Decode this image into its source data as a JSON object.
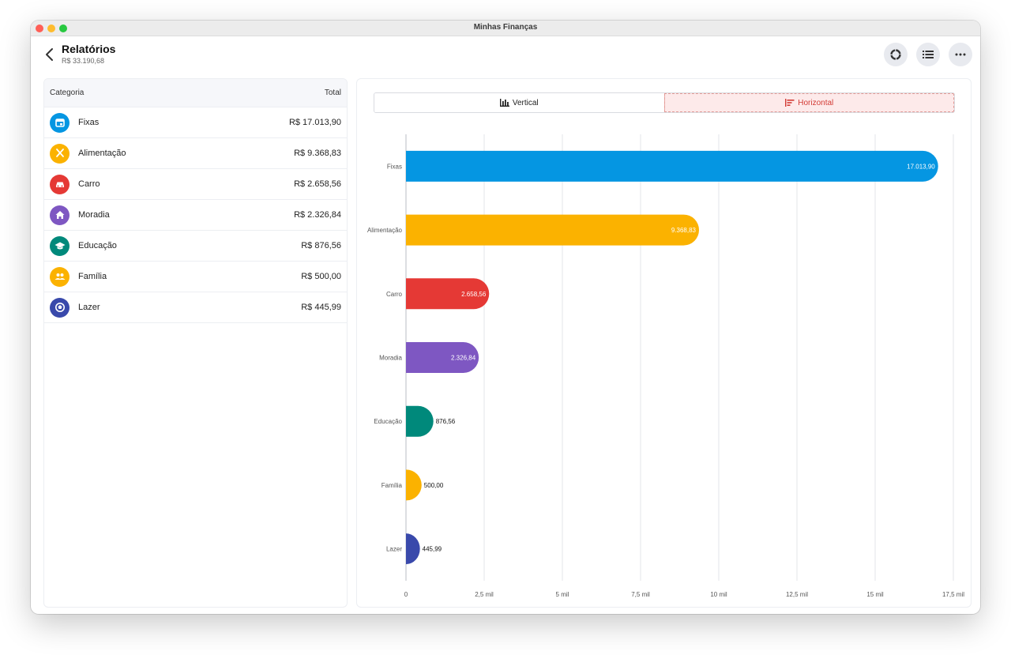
{
  "window": {
    "title": "Minhas Finanças"
  },
  "header": {
    "title": "Relatórios",
    "subtitle": "R$ 33.190,68"
  },
  "table": {
    "col_category": "Categoria",
    "col_total": "Total",
    "rows": [
      {
        "name": "Fixas",
        "total": "R$ 17.013,90",
        "color": "#0596e2",
        "icon": "calendar-icon"
      },
      {
        "name": "Alimentação",
        "total": "R$ 9.368,83",
        "color": "#fbb200",
        "icon": "utensils-icon"
      },
      {
        "name": "Carro",
        "total": "R$ 2.658,56",
        "color": "#e53935",
        "icon": "car-icon"
      },
      {
        "name": "Moradia",
        "total": "R$ 2.326,84",
        "color": "#7e57c2",
        "icon": "home-icon"
      },
      {
        "name": "Educação",
        "total": "R$ 876,56",
        "color": "#00897b",
        "icon": "graduation-cap-icon"
      },
      {
        "name": "Família",
        "total": "R$ 500,00",
        "color": "#fbb200",
        "icon": "people-icon"
      },
      {
        "name": "Lazer",
        "total": "R$ 445,99",
        "color": "#3949ab",
        "icon": "ball-icon"
      }
    ]
  },
  "toggle": {
    "vertical_label": "Vertical",
    "horizontal_label": "Horizontal",
    "active": "Horizontal"
  },
  "chart_data": {
    "type": "bar",
    "orientation": "horizontal",
    "categories": [
      "Fixas",
      "Alimentação",
      "Carro",
      "Moradia",
      "Educação",
      "Família",
      "Lazer"
    ],
    "values": [
      17013.9,
      9368.83,
      2658.56,
      2326.84,
      876.56,
      500.0,
      445.99
    ],
    "value_labels": [
      "17.013,90",
      "9.368,83",
      "2.658,56",
      "2.326,84",
      "876,56",
      "500,00",
      "445,99"
    ],
    "colors": [
      "#0596e2",
      "#fbb200",
      "#e53935",
      "#7e57c2",
      "#00897b",
      "#fbb200",
      "#3949ab"
    ],
    "xlim": [
      0,
      17500
    ],
    "xticks": [
      0,
      2500,
      5000,
      7500,
      10000,
      12500,
      15000,
      17500
    ],
    "xtick_labels": [
      "0",
      "2,5 mil",
      "5 mil",
      "7,5 mil",
      "10 mil",
      "12,5 mil",
      "15 mil",
      "17,5 mil"
    ],
    "grid": true
  }
}
